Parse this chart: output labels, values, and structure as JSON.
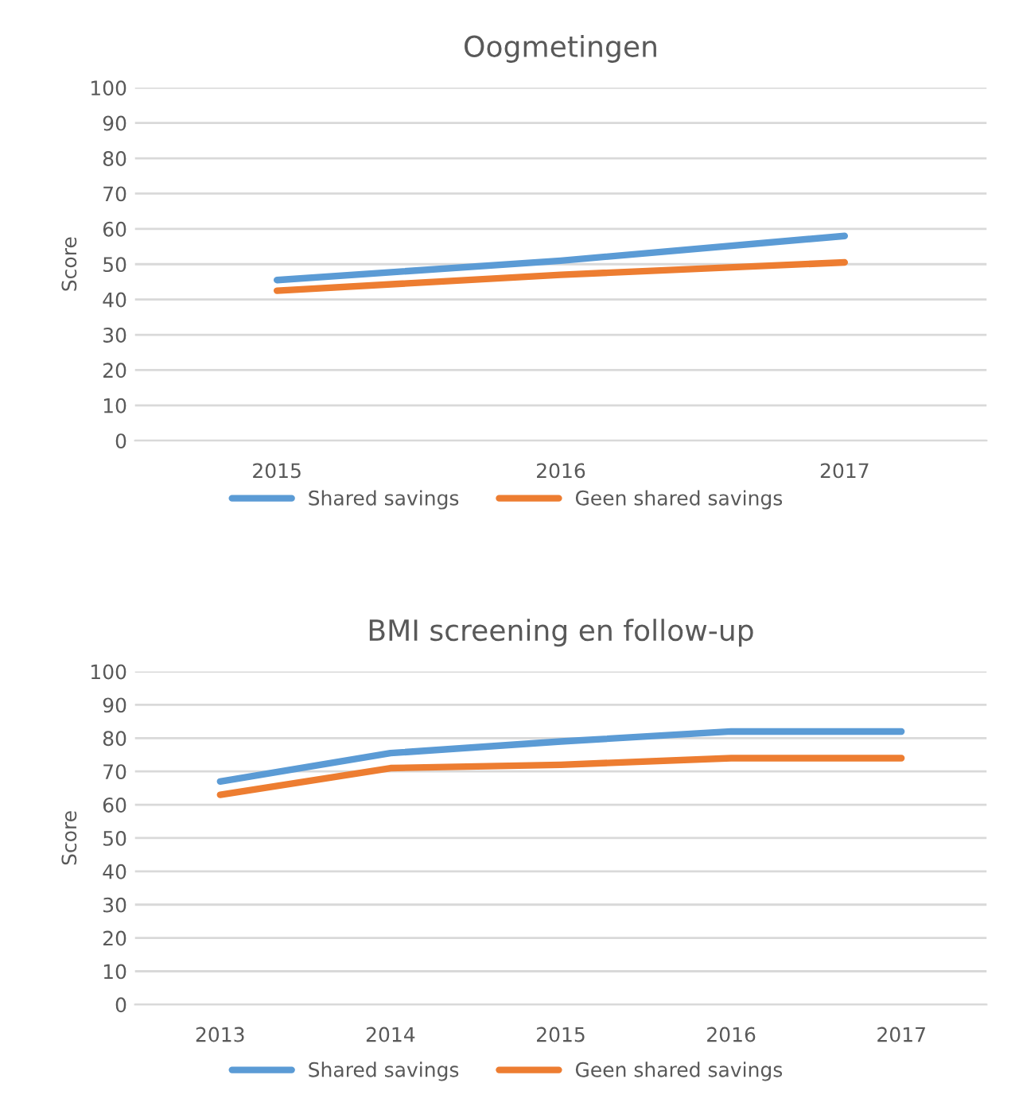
{
  "chart_data": [
    {
      "type": "line",
      "title": "Oogmetingen",
      "ylabel": "Score",
      "categories": [
        "2015",
        "2016",
        "2017"
      ],
      "ylim": [
        0,
        100
      ],
      "yticks": [
        0,
        10,
        20,
        30,
        40,
        50,
        60,
        70,
        80,
        90,
        100
      ],
      "grid": "y",
      "legend": "bottom",
      "marker": "none",
      "line_style": "solid",
      "series": [
        {
          "name": "Shared savings",
          "color": "#5b9bd5",
          "values": [
            45.5,
            51,
            58
          ]
        },
        {
          "name": "Geen shared savings",
          "color": "#ed7d31",
          "values": [
            42.5,
            47,
            50.5
          ]
        }
      ]
    },
    {
      "type": "line",
      "title": "BMI screening en follow-up",
      "ylabel": "Score",
      "categories": [
        "2013",
        "2014",
        "2015",
        "2016",
        "2017"
      ],
      "ylim": [
        0,
        100
      ],
      "yticks": [
        0,
        10,
        20,
        30,
        40,
        50,
        60,
        70,
        80,
        90,
        100
      ],
      "grid": "y",
      "legend": "bottom",
      "marker": "none",
      "line_style": "solid",
      "series": [
        {
          "name": "Shared savings",
          "color": "#5b9bd5",
          "values": [
            67,
            75.5,
            79,
            82,
            82
          ]
        },
        {
          "name": "Geen shared savings",
          "color": "#ed7d31",
          "values": [
            63,
            71,
            72,
            74,
            74
          ]
        }
      ]
    }
  ]
}
